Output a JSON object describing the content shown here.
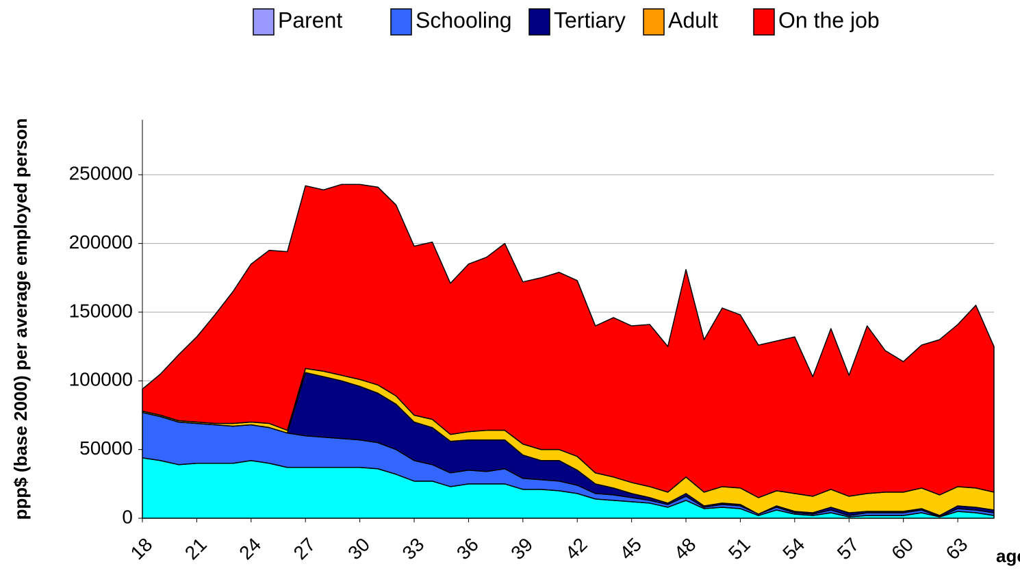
{
  "chart_data": {
    "type": "stacked_area",
    "y_label": "ppp$ (base 2000) per average employed person",
    "x_label": "age",
    "x": [
      18,
      19,
      20,
      21,
      22,
      23,
      24,
      25,
      26,
      27,
      28,
      29,
      30,
      31,
      32,
      33,
      34,
      35,
      36,
      37,
      38,
      39,
      40,
      41,
      42,
      43,
      44,
      45,
      46,
      47,
      48,
      49,
      50,
      51,
      52,
      53,
      54,
      55,
      56,
      57,
      58,
      59,
      60,
      61,
      62,
      63,
      64,
      65
    ],
    "xlim": [
      18,
      65
    ],
    "xticks": [
      18,
      21,
      24,
      27,
      30,
      33,
      36,
      39,
      42,
      45,
      48,
      51,
      54,
      57,
      60,
      63
    ],
    "ylim": [
      0,
      290000
    ],
    "yticks": [
      0,
      50000,
      100000,
      150000,
      200000,
      250000
    ],
    "grid": true,
    "legend": "top",
    "series": [
      {
        "name": "Parent",
        "color": "#00ffff",
        "legend_color": "#9999ff",
        "values": [
          44000,
          42000,
          39000,
          40000,
          40000,
          40000,
          42000,
          40000,
          37000,
          37000,
          37000,
          37000,
          37000,
          36000,
          32000,
          27000,
          27000,
          23000,
          25000,
          25000,
          25000,
          21000,
          21000,
          20000,
          18000,
          14000,
          13000,
          12000,
          11000,
          8000,
          13000,
          7000,
          8000,
          7000,
          2000,
          6000,
          3000,
          2000,
          4000,
          1000,
          2000,
          2000,
          2000,
          4000,
          1000,
          5000,
          4000,
          2000
        ]
      },
      {
        "name": "Schooling",
        "color": "#3366ff",
        "values": [
          33000,
          32000,
          31000,
          29000,
          28000,
          27000,
          26000,
          26000,
          25000,
          23000,
          22000,
          21000,
          20000,
          19000,
          18000,
          15000,
          12000,
          10000,
          10000,
          9000,
          11000,
          8000,
          7000,
          7000,
          6000,
          4000,
          4000,
          3000,
          2000,
          2000,
          3000,
          1000,
          2000,
          2000,
          1000,
          2000,
          1000,
          1000,
          2000,
          1000,
          2000,
          2000,
          2000,
          2000,
          0,
          2000,
          2000,
          2000
        ]
      },
      {
        "name": "Tertiary",
        "color": "#000080",
        "values": [
          0,
          0,
          0,
          0,
          0,
          0,
          0,
          0,
          0,
          46000,
          44000,
          42000,
          39000,
          36000,
          33000,
          28000,
          27000,
          23000,
          22000,
          23000,
          21000,
          17000,
          14000,
          15000,
          11000,
          7000,
          5000,
          3000,
          2000,
          1000,
          2000,
          1000,
          1000,
          1000,
          0,
          1000,
          1000,
          1000,
          2000,
          2000,
          1000,
          1000,
          1000,
          1000,
          1000,
          2000,
          2000,
          2000
        ]
      },
      {
        "name": "Adult",
        "color": "#ffcc00",
        "legend_color": "#ff9900",
        "values": [
          1000,
          1000,
          1000,
          1000,
          1000,
          2000,
          2000,
          3000,
          2000,
          3000,
          4000,
          4000,
          5000,
          6000,
          6000,
          5000,
          6000,
          5000,
          6000,
          7000,
          7000,
          8000,
          8000,
          8000,
          10000,
          8000,
          8000,
          8000,
          8000,
          8000,
          12000,
          10000,
          12000,
          12000,
          12000,
          11000,
          13000,
          12000,
          13000,
          12000,
          13000,
          14000,
          14000,
          15000,
          15000,
          14000,
          14000,
          13000
        ]
      },
      {
        "name": "On the job",
        "color": "#ff0000",
        "values": [
          16000,
          30000,
          48000,
          62000,
          79000,
          96000,
          115000,
          126000,
          130000,
          133000,
          132000,
          139000,
          142000,
          144000,
          139000,
          123000,
          129000,
          110000,
          122000,
          126000,
          136000,
          118000,
          125000,
          129000,
          128000,
          107000,
          116000,
          114000,
          118000,
          106000,
          151000,
          111000,
          130000,
          126000,
          111000,
          109000,
          114000,
          87000,
          117000,
          88000,
          122000,
          103000,
          95000,
          104000,
          113000,
          118000,
          133000,
          106000
        ]
      }
    ]
  }
}
